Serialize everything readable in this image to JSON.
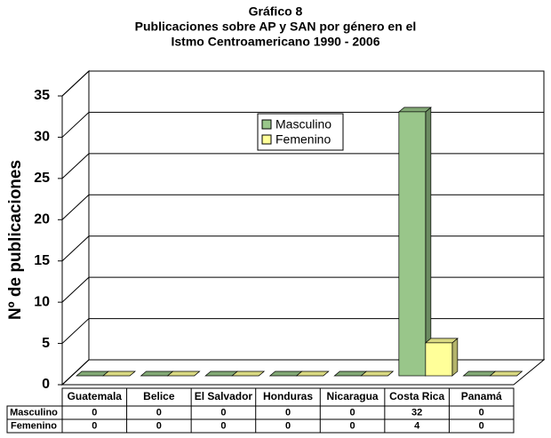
{
  "chart_data": {
    "type": "bar",
    "title": [
      "Gráfico 8",
      "Publicaciones sobre AP y SAN por género en el",
      "Istmo Centroamericano 1990 - 2006"
    ],
    "y_label": "Nº de publicaciones",
    "categories": [
      "Guatemala",
      "Belice",
      "El Salvador",
      "Honduras",
      "Nicaragua",
      "Costa Rica",
      "Panamá"
    ],
    "series": [
      {
        "name": "Masculino",
        "color": "#99c68a",
        "values": [
          0,
          0,
          0,
          0,
          0,
          32,
          0
        ]
      },
      {
        "name": "Femenino",
        "color": "#ffff99",
        "values": [
          0,
          0,
          0,
          0,
          0,
          4,
          0
        ]
      }
    ],
    "ylim": [
      0,
      35
    ],
    "yticks": [
      0,
      5,
      10,
      15,
      20,
      25,
      30,
      35
    ],
    "grid": true,
    "legend": "top center",
    "data_table": true
  }
}
